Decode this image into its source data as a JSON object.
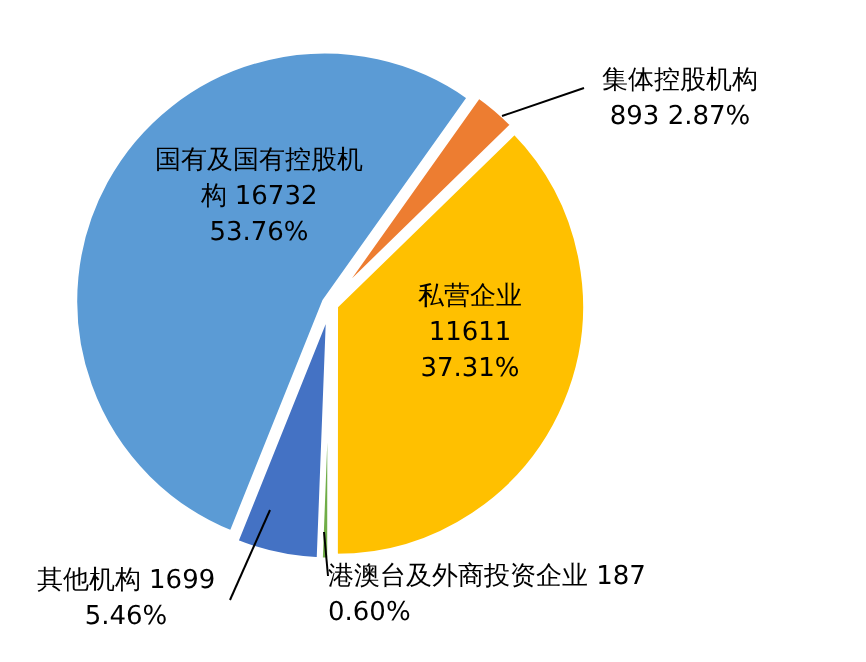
{
  "chart_data": {
    "type": "pie",
    "categories": [
      "集体控股机构",
      "私营企业",
      "港澳台及外商投资企业",
      "其他机构",
      "国有及国有控股机构"
    ],
    "values": [
      893,
      11611,
      187,
      1699,
      16732
    ],
    "value_labels": [
      "893 2.87%",
      "11611 37.31%",
      "187 0.60%",
      "1699 5.46%",
      "16732 53.76%"
    ],
    "colors": [
      "#ed7d31",
      "#ffc000",
      "#70ad47",
      "#4472c4",
      "#5b9bd5"
    ],
    "legend": false
  }
}
